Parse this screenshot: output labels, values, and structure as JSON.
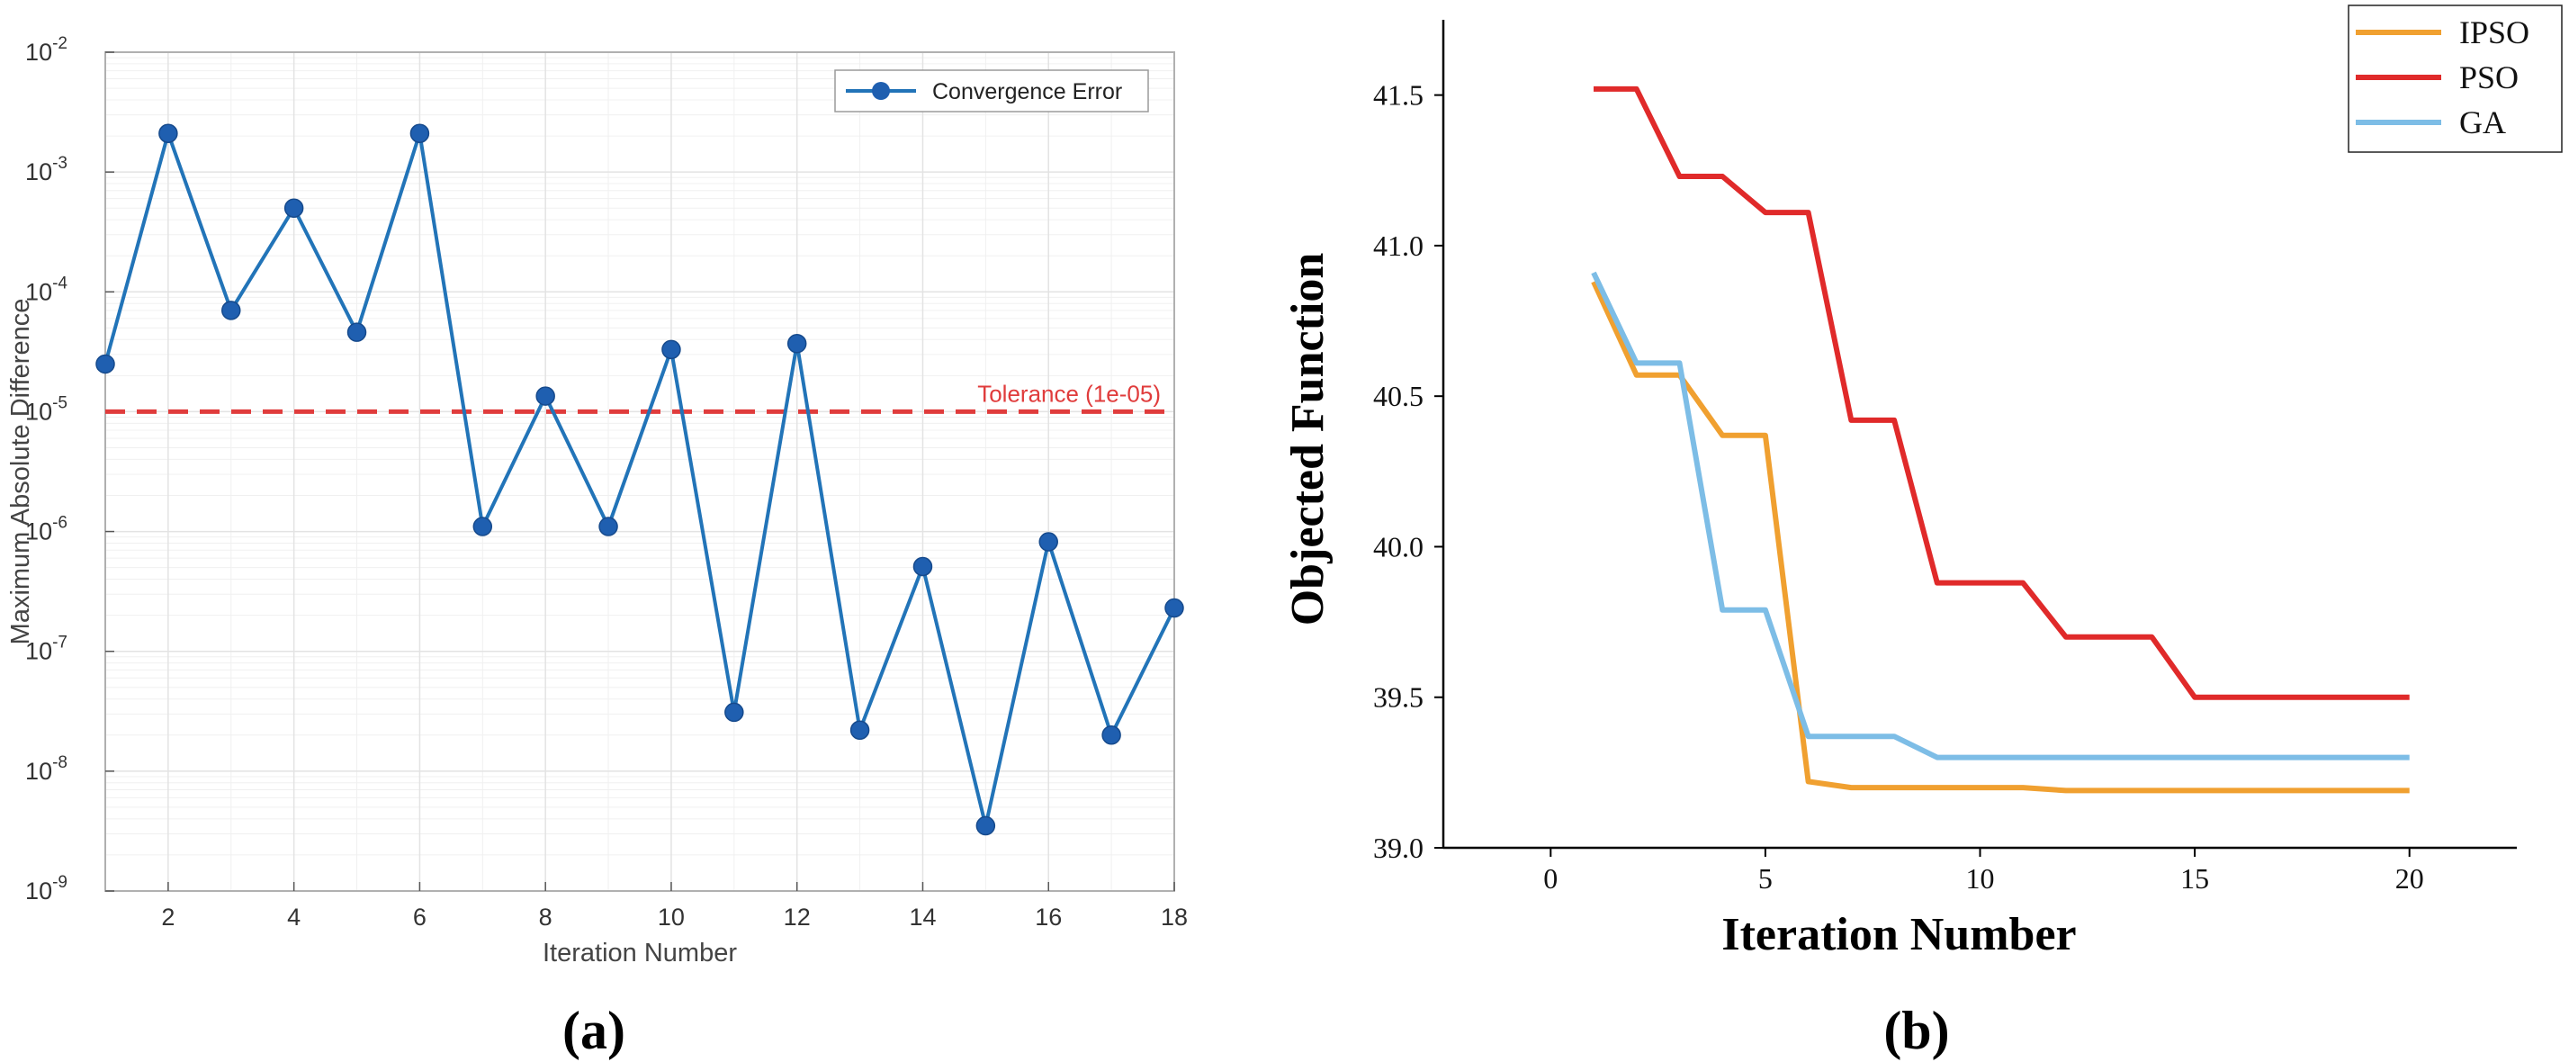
{
  "colors": {
    "a_series": "#2274b8",
    "a_marker": "#1f5fb0",
    "a_tolerance": "#e03c3c",
    "ipso": "#f0a030",
    "pso": "#e02a2a",
    "ga": "#7dbde6",
    "grid": "#e3e3e3",
    "axis": "#555555"
  },
  "chart_data": [
    {
      "id": "a",
      "panel_label": "(a)",
      "type": "line",
      "y_scale": "log",
      "title": "",
      "xlabel": "Iteration Number",
      "ylabel": "Maximum Absolute Difference",
      "xlim": [
        1,
        18
      ],
      "ylim": [
        1e-09,
        0.01
      ],
      "x_ticks": [
        "2",
        "4",
        "6",
        "8",
        "10",
        "12",
        "14",
        "16",
        "18"
      ],
      "y_ticks": [
        {
          "base": "10",
          "exp": "-9"
        },
        {
          "base": "10",
          "exp": "-8"
        },
        {
          "base": "10",
          "exp": "-7"
        },
        {
          "base": "10",
          "exp": "-6"
        },
        {
          "base": "10",
          "exp": "-5"
        },
        {
          "base": "10",
          "exp": "-4"
        },
        {
          "base": "10",
          "exp": "-3"
        },
        {
          "base": "10",
          "exp": "-2"
        }
      ],
      "grid": true,
      "legend_position": "top-right",
      "series": [
        {
          "name": "Convergence Error",
          "x": [
            1,
            2,
            3,
            4,
            5,
            6,
            7,
            8,
            9,
            10,
            11,
            12,
            13,
            14,
            15,
            16,
            17,
            18
          ],
          "y": [
            2.5e-05,
            0.0021,
            7e-05,
            0.0005,
            4.6e-05,
            0.0021,
            1.1e-06,
            1.35e-05,
            1.1e-06,
            3.3e-05,
            3.1e-08,
            3.7e-05,
            2.2e-08,
            5.1e-07,
            3.5e-09,
            8.2e-07,
            2e-08,
            2.3e-07
          ]
        }
      ],
      "reference_line": {
        "value": 1e-05,
        "label": "Tolerance (1e-05)"
      }
    },
    {
      "id": "b",
      "panel_label": "(b)",
      "type": "line",
      "title": "",
      "xlabel": "Iteration Number",
      "ylabel": "Objected Function",
      "xlim": [
        -2.5,
        22.5
      ],
      "ylim": [
        39.0,
        41.75
      ],
      "x_ticks": [
        "0",
        "5",
        "10",
        "15",
        "20"
      ],
      "y_ticks": [
        "39.0",
        "39.5",
        "40.0",
        "40.5",
        "41.0",
        "41.5"
      ],
      "grid": false,
      "legend_position": "top-right",
      "series": [
        {
          "name": "IPSO",
          "x": [
            1,
            2,
            3,
            4,
            5,
            6,
            7,
            8,
            9,
            10,
            11,
            12,
            13,
            14,
            15,
            16,
            17,
            18,
            19,
            20
          ],
          "y": [
            40.88,
            40.57,
            40.57,
            40.37,
            40.37,
            39.22,
            39.2,
            39.2,
            39.2,
            39.2,
            39.2,
            39.19,
            39.19,
            39.19,
            39.19,
            39.19,
            39.19,
            39.19,
            39.19,
            39.19
          ]
        },
        {
          "name": "PSO",
          "x": [
            1,
            2,
            3,
            4,
            5,
            6,
            7,
            8,
            9,
            10,
            11,
            12,
            13,
            14,
            15,
            16,
            17,
            18,
            19,
            20
          ],
          "y": [
            41.52,
            41.52,
            41.23,
            41.23,
            41.11,
            41.11,
            40.42,
            40.42,
            39.88,
            39.88,
            39.88,
            39.7,
            39.7,
            39.7,
            39.5,
            39.5,
            39.5,
            39.5,
            39.5,
            39.5
          ]
        },
        {
          "name": "GA",
          "x": [
            1,
            2,
            3,
            4,
            5,
            6,
            7,
            8,
            9,
            10,
            11,
            12,
            13,
            14,
            15,
            16,
            17,
            18,
            19,
            20
          ],
          "y": [
            40.91,
            40.61,
            40.61,
            39.79,
            39.79,
            39.37,
            39.37,
            39.37,
            39.3,
            39.3,
            39.3,
            39.3,
            39.3,
            39.3,
            39.3,
            39.3,
            39.3,
            39.3,
            39.3,
            39.3
          ]
        }
      ]
    }
  ]
}
